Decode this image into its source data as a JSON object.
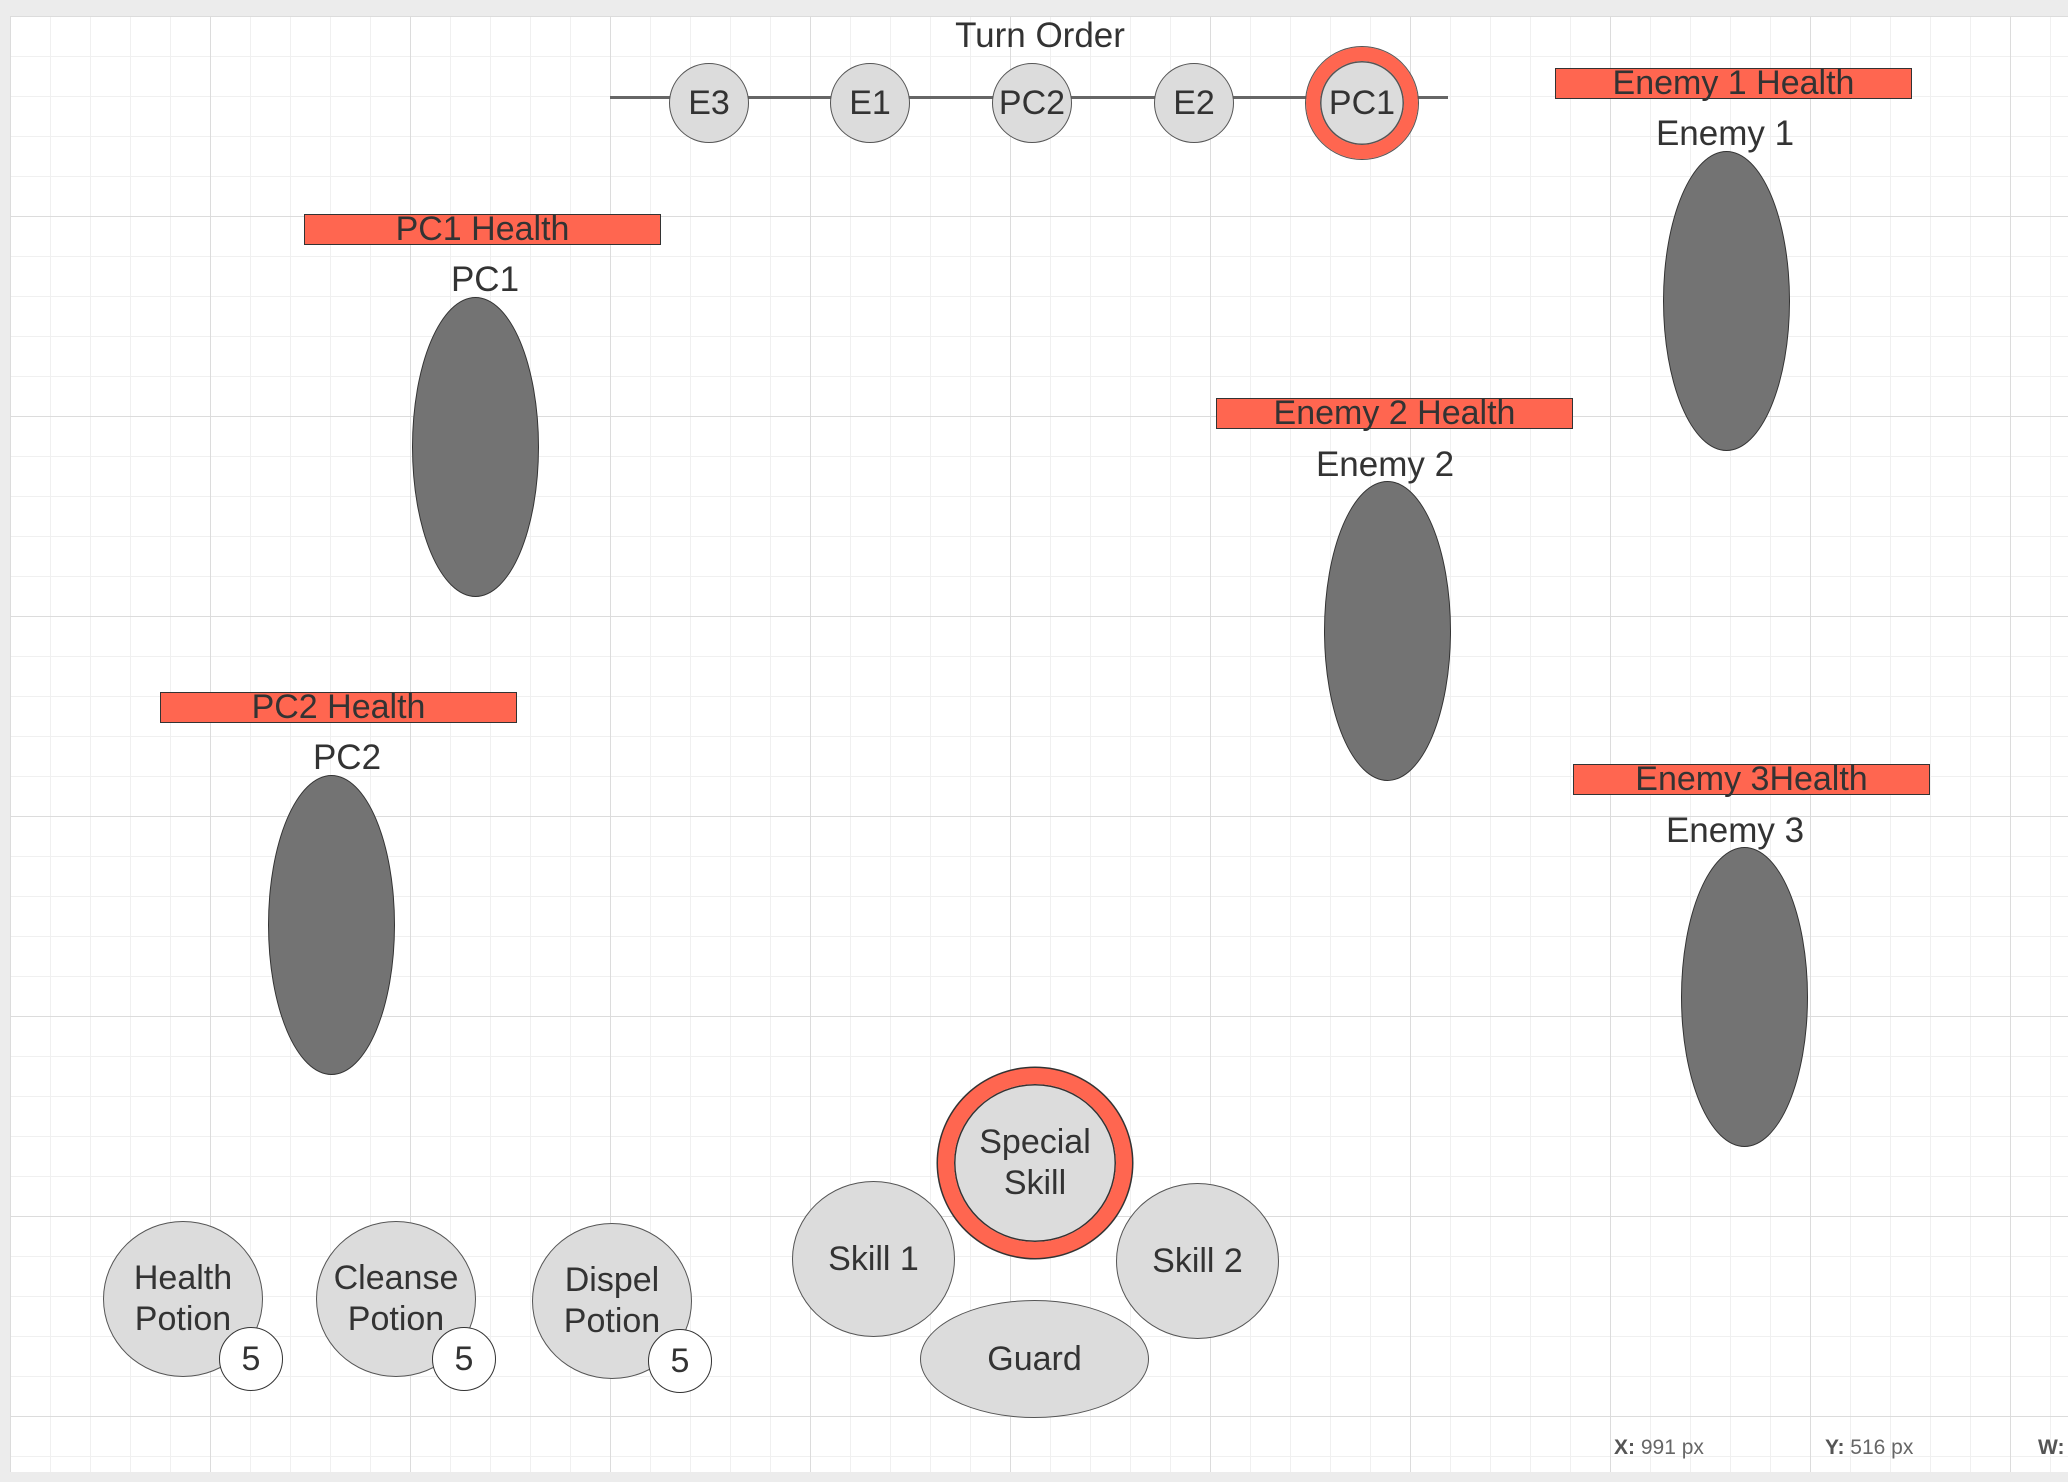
{
  "canvas": {
    "turn_order": {
      "title": "Turn Order",
      "nodes": [
        "E3",
        "E1",
        "PC2",
        "E2",
        "PC1"
      ],
      "active": "PC1"
    },
    "characters": {
      "pc1": {
        "health_label": "PC1 Health",
        "name": "PC1"
      },
      "pc2": {
        "health_label": "PC2 Health",
        "name": "PC2"
      },
      "enemy1": {
        "health_label": "Enemy 1 Health",
        "name": "Enemy 1"
      },
      "enemy2": {
        "health_label": "Enemy 2 Health",
        "name": "Enemy 2"
      },
      "enemy3": {
        "health_label": "Enemy 3Health",
        "name": "Enemy 3"
      }
    },
    "items": [
      {
        "line1": "Health",
        "line2": "Potion",
        "count": "5"
      },
      {
        "line1": "Cleanse",
        "line2": "Potion",
        "count": "5"
      },
      {
        "line1": "Dispel",
        "line2": "Potion",
        "count": "5"
      }
    ],
    "skills": {
      "special_line1": "Special",
      "special_line2": "Skill",
      "skill1": "Skill 1",
      "skill2": "Skill 2",
      "guard": "Guard"
    }
  },
  "statusbar": {
    "x_label": "X:",
    "x_value": "991 px",
    "y_label": "Y:",
    "y_value": "516 px",
    "w_label": "W:"
  },
  "colors": {
    "health_bar": "#ff6650",
    "highlight_ring": "#ff6650",
    "character_fill": "#737373",
    "node_fill": "#dcdcdc",
    "text": "#333333"
  }
}
